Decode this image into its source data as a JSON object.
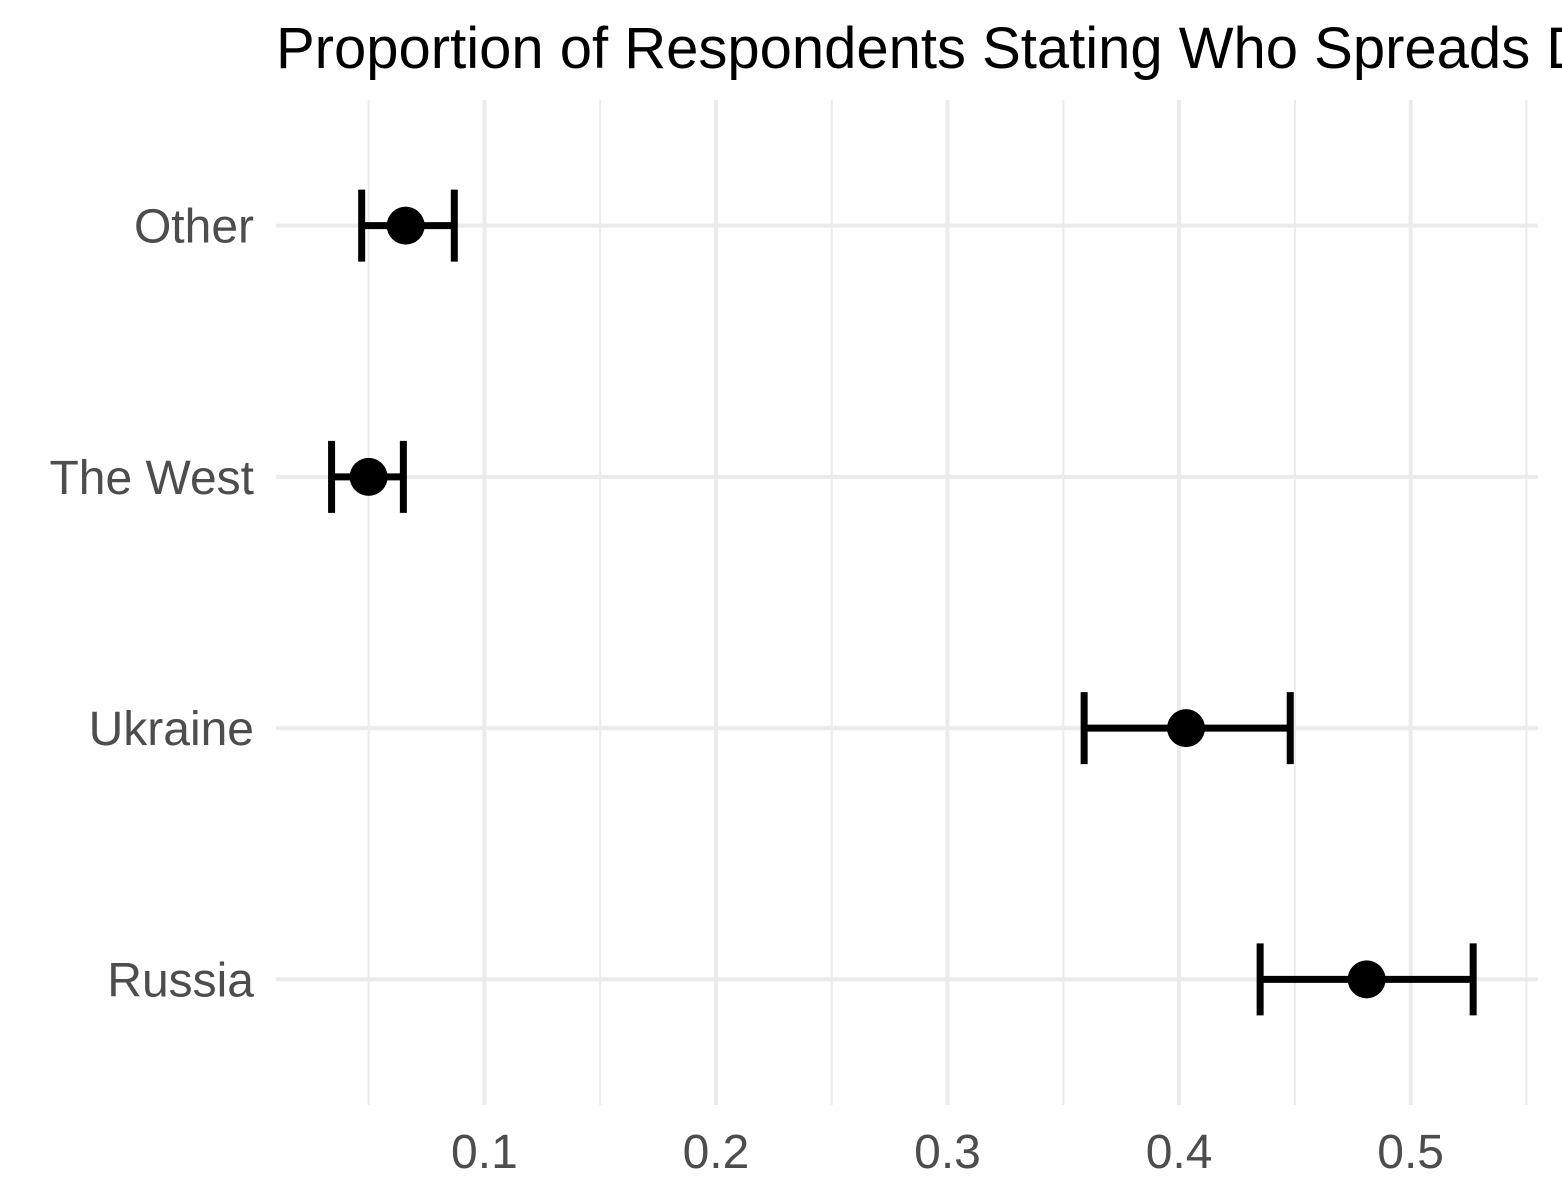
{
  "chart_data": {
    "type": "scatter",
    "title": "Proportion of Respondents Stating Who Spreads Disinformation",
    "xlabel": "",
    "ylabel": "",
    "xlim": [
      0.01,
      0.555
    ],
    "x_ticks": [
      0.1,
      0.2,
      0.3,
      0.4,
      0.5
    ],
    "x_tick_labels": [
      "0.1",
      "0.2",
      "0.3",
      "0.4",
      "0.5"
    ],
    "grid": true,
    "legend": "none",
    "categories": [
      "Russia",
      "Ukraine",
      "The West",
      "Other"
    ],
    "series": [
      {
        "estimates": [
          0.481,
          0.403,
          0.05,
          0.066
        ],
        "lower": [
          0.435,
          0.359,
          0.034,
          0.047
        ],
        "upper": [
          0.527,
          0.448,
          0.065,
          0.087
        ]
      }
    ],
    "colors": {
      "point": "#000000",
      "grid": "#ebebeb",
      "tick_text": "#4d4d4d",
      "title": "#000000",
      "background": "#ffffff"
    }
  }
}
